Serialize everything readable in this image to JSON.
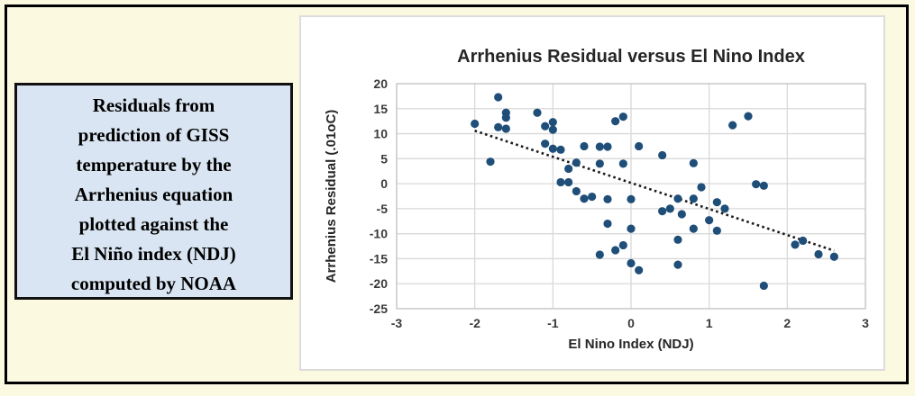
{
  "note": {
    "lines": [
      "Residuals from",
      "prediction of GISS",
      "temperature by the",
      "Arrhenius equation",
      "plotted against the",
      "El Niño index (NDJ)",
      "computed by NOAA"
    ]
  },
  "chart_data": {
    "type": "scatter",
    "title": "Arrhenius Residual versus El Nino Index",
    "xlabel": "El Nino Index (NDJ)",
    "ylabel": "Arrhenius Residual (.01oC)",
    "xlim": [
      -3,
      3
    ],
    "ylim": [
      -25,
      20
    ],
    "xticks": [
      -3,
      -2,
      -1,
      0,
      1,
      2,
      3
    ],
    "yticks": [
      20,
      15,
      10,
      5,
      0,
      -5,
      -10,
      -15,
      -20,
      -25
    ],
    "grid": true,
    "legend": "none",
    "point_color": "#1F4E79",
    "grid_color": "#D9D9D9",
    "text_color": "#262626",
    "tick_color": "#3A3A3A",
    "trendline": {
      "style": "dotted",
      "color": "#1A1A1A",
      "x1": -2.0,
      "y1": 10.6,
      "x2": 2.6,
      "y2": -13.4
    },
    "points": [
      [
        -2.0,
        12.0
      ],
      [
        -1.8,
        4.4
      ],
      [
        -1.7,
        17.3
      ],
      [
        -1.7,
        11.3
      ],
      [
        -1.6,
        14.2
      ],
      [
        -1.6,
        13.2
      ],
      [
        -1.6,
        11.0
      ],
      [
        -1.2,
        14.2
      ],
      [
        -1.1,
        11.5
      ],
      [
        -1.1,
        8.0
      ],
      [
        -1.0,
        12.3
      ],
      [
        -1.0,
        10.8
      ],
      [
        -1.0,
        7.0
      ],
      [
        -0.9,
        6.8
      ],
      [
        -0.9,
        0.3
      ],
      [
        -0.8,
        3.0
      ],
      [
        -0.8,
        0.3
      ],
      [
        -0.7,
        4.2
      ],
      [
        -0.7,
        -1.5
      ],
      [
        -0.6,
        7.5
      ],
      [
        -0.6,
        -3.0
      ],
      [
        -0.5,
        -2.6
      ],
      [
        -0.4,
        7.4
      ],
      [
        -0.4,
        4.0
      ],
      [
        -0.4,
        -14.2
      ],
      [
        -0.3,
        7.4
      ],
      [
        -0.3,
        -3.1
      ],
      [
        -0.3,
        -8.0
      ],
      [
        -0.2,
        12.5
      ],
      [
        -0.2,
        -13.3
      ],
      [
        -0.1,
        13.4
      ],
      [
        -0.1,
        4.0
      ],
      [
        -0.1,
        -12.3
      ],
      [
        0.0,
        -3.1
      ],
      [
        0.0,
        -9.0
      ],
      [
        0.0,
        -15.9
      ],
      [
        0.1,
        7.5
      ],
      [
        0.1,
        -17.3
      ],
      [
        0.4,
        5.7
      ],
      [
        0.4,
        -5.5
      ],
      [
        0.5,
        -5.0
      ],
      [
        0.6,
        -3.0
      ],
      [
        0.6,
        -11.2
      ],
      [
        0.6,
        -16.2
      ],
      [
        0.65,
        -6.1
      ],
      [
        0.8,
        4.1
      ],
      [
        0.8,
        -3.0
      ],
      [
        0.8,
        -9.0
      ],
      [
        0.9,
        -0.7
      ],
      [
        1.0,
        -7.3
      ],
      [
        1.1,
        -3.7
      ],
      [
        1.1,
        -9.4
      ],
      [
        1.2,
        -5.0
      ],
      [
        1.3,
        11.7
      ],
      [
        1.5,
        13.5
      ],
      [
        1.6,
        -0.1
      ],
      [
        1.7,
        -0.4
      ],
      [
        1.7,
        -20.4
      ],
      [
        2.1,
        -12.2
      ],
      [
        2.2,
        -11.4
      ],
      [
        2.4,
        -14.1
      ],
      [
        2.6,
        -14.6
      ]
    ]
  }
}
